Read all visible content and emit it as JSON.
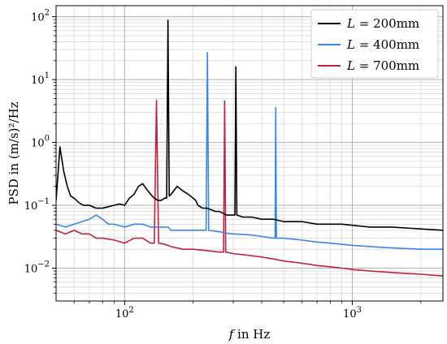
{
  "chart_data": {
    "type": "line",
    "title": "",
    "xlabel_var": "f",
    "xlabel_rest": " in Hz",
    "ylabel": "PSD in (m/s)²/Hz",
    "x_scale": "log",
    "y_scale": "log",
    "xlim": [
      50,
      2500
    ],
    "ylim": [
      0.003,
      150
    ],
    "x_ticks": [
      {
        "value": 100,
        "label_base": "10",
        "label_exp": "2"
      },
      {
        "value": 1000,
        "label_base": "10",
        "label_exp": "3"
      }
    ],
    "y_ticks": [
      {
        "value": 0.01,
        "label_base": "10",
        "label_exp": "−2"
      },
      {
        "value": 0.1,
        "label_base": "10",
        "label_exp": "−1"
      },
      {
        "value": 1,
        "label_base": "10",
        "label_exp": "0"
      },
      {
        "value": 10,
        "label_base": "10",
        "label_exp": "1"
      },
      {
        "value": 100,
        "label_base": "10",
        "label_exp": "2"
      }
    ],
    "grid": true,
    "legend_position": "top-right",
    "series": [
      {
        "name_var": "L",
        "name_rest": " = 200mm",
        "color": "#000000",
        "points": [
          [
            50,
            0.12
          ],
          [
            52,
            0.85
          ],
          [
            54,
            0.35
          ],
          [
            56,
            0.2
          ],
          [
            58,
            0.14
          ],
          [
            60,
            0.13
          ],
          [
            63,
            0.11
          ],
          [
            66,
            0.1
          ],
          [
            70,
            0.1
          ],
          [
            75,
            0.09
          ],
          [
            80,
            0.09
          ],
          [
            85,
            0.095
          ],
          [
            90,
            0.1
          ],
          [
            95,
            0.105
          ],
          [
            100,
            0.1
          ],
          [
            105,
            0.13
          ],
          [
            110,
            0.15
          ],
          [
            115,
            0.2
          ],
          [
            120,
            0.22
          ],
          [
            125,
            0.18
          ],
          [
            130,
            0.15
          ],
          [
            135,
            0.13
          ],
          [
            140,
            0.12
          ],
          [
            145,
            0.12
          ],
          [
            150,
            0.13
          ],
          [
            153,
            0.13
          ],
          [
            155,
            88
          ],
          [
            157,
            0.14
          ],
          [
            160,
            0.15
          ],
          [
            170,
            0.2
          ],
          [
            180,
            0.17
          ],
          [
            190,
            0.15
          ],
          [
            200,
            0.13
          ],
          [
            205,
            0.12
          ],
          [
            210,
            0.1
          ],
          [
            220,
            0.09
          ],
          [
            230,
            0.09
          ],
          [
            240,
            0.085
          ],
          [
            250,
            0.08
          ],
          [
            260,
            0.08
          ],
          [
            270,
            0.075
          ],
          [
            280,
            0.07
          ],
          [
            290,
            0.07
          ],
          [
            300,
            0.07
          ],
          [
            305,
            0.07
          ],
          [
            308,
            16
          ],
          [
            311,
            0.07
          ],
          [
            330,
            0.065
          ],
          [
            360,
            0.065
          ],
          [
            400,
            0.06
          ],
          [
            450,
            0.06
          ],
          [
            500,
            0.055
          ],
          [
            600,
            0.055
          ],
          [
            700,
            0.05
          ],
          [
            800,
            0.05
          ],
          [
            900,
            0.05
          ],
          [
            1000,
            0.048
          ],
          [
            1200,
            0.045
          ],
          [
            1500,
            0.045
          ],
          [
            2000,
            0.042
          ],
          [
            2500,
            0.04
          ]
        ]
      },
      {
        "name_var": "L",
        "name_rest": " = 400mm",
        "color": "#3a86e6",
        "points": [
          [
            50,
            0.05
          ],
          [
            55,
            0.045
          ],
          [
            60,
            0.05
          ],
          [
            65,
            0.055
          ],
          [
            70,
            0.06
          ],
          [
            75,
            0.07
          ],
          [
            80,
            0.06
          ],
          [
            85,
            0.05
          ],
          [
            90,
            0.05
          ],
          [
            100,
            0.045
          ],
          [
            110,
            0.05
          ],
          [
            120,
            0.05
          ],
          [
            130,
            0.045
          ],
          [
            140,
            0.045
          ],
          [
            150,
            0.045
          ],
          [
            155,
            0.045
          ],
          [
            160,
            0.04
          ],
          [
            180,
            0.04
          ],
          [
            200,
            0.04
          ],
          [
            220,
            0.04
          ],
          [
            228,
            0.04
          ],
          [
            231,
            27
          ],
          [
            234,
            0.04
          ],
          [
            260,
            0.038
          ],
          [
            280,
            0.036
          ],
          [
            300,
            0.035
          ],
          [
            350,
            0.034
          ],
          [
            400,
            0.032
          ],
          [
            450,
            0.03
          ],
          [
            458,
            0.03
          ],
          [
            461,
            3.6
          ],
          [
            464,
            0.03
          ],
          [
            500,
            0.03
          ],
          [
            600,
            0.028
          ],
          [
            700,
            0.026
          ],
          [
            800,
            0.025
          ],
          [
            900,
            0.024
          ],
          [
            1000,
            0.023
          ],
          [
            1200,
            0.022
          ],
          [
            1500,
            0.021
          ],
          [
            2000,
            0.02
          ],
          [
            2500,
            0.02
          ]
        ]
      },
      {
        "name_var": "L",
        "name_rest": " = 700mm",
        "color": "#c0213f",
        "points": [
          [
            50,
            0.04
          ],
          [
            55,
            0.035
          ],
          [
            60,
            0.04
          ],
          [
            65,
            0.035
          ],
          [
            70,
            0.035
          ],
          [
            75,
            0.03
          ],
          [
            80,
            0.03
          ],
          [
            90,
            0.028
          ],
          [
            100,
            0.025
          ],
          [
            110,
            0.03
          ],
          [
            120,
            0.03
          ],
          [
            130,
            0.025
          ],
          [
            135,
            0.025
          ],
          [
            138,
            4.7
          ],
          [
            141,
            0.025
          ],
          [
            150,
            0.024
          ],
          [
            160,
            0.022
          ],
          [
            180,
            0.02
          ],
          [
            200,
            0.02
          ],
          [
            230,
            0.019
          ],
          [
            260,
            0.018
          ],
          [
            272,
            0.018
          ],
          [
            275,
            4.6
          ],
          [
            278,
            0.018
          ],
          [
            300,
            0.017
          ],
          [
            350,
            0.016
          ],
          [
            400,
            0.015
          ],
          [
            450,
            0.014
          ],
          [
            500,
            0.013
          ],
          [
            600,
            0.012
          ],
          [
            700,
            0.011
          ],
          [
            800,
            0.0105
          ],
          [
            900,
            0.01
          ],
          [
            1000,
            0.0095
          ],
          [
            1200,
            0.009
          ],
          [
            1500,
            0.0085
          ],
          [
            2000,
            0.008
          ],
          [
            2500,
            0.0075
          ]
        ]
      }
    ]
  }
}
